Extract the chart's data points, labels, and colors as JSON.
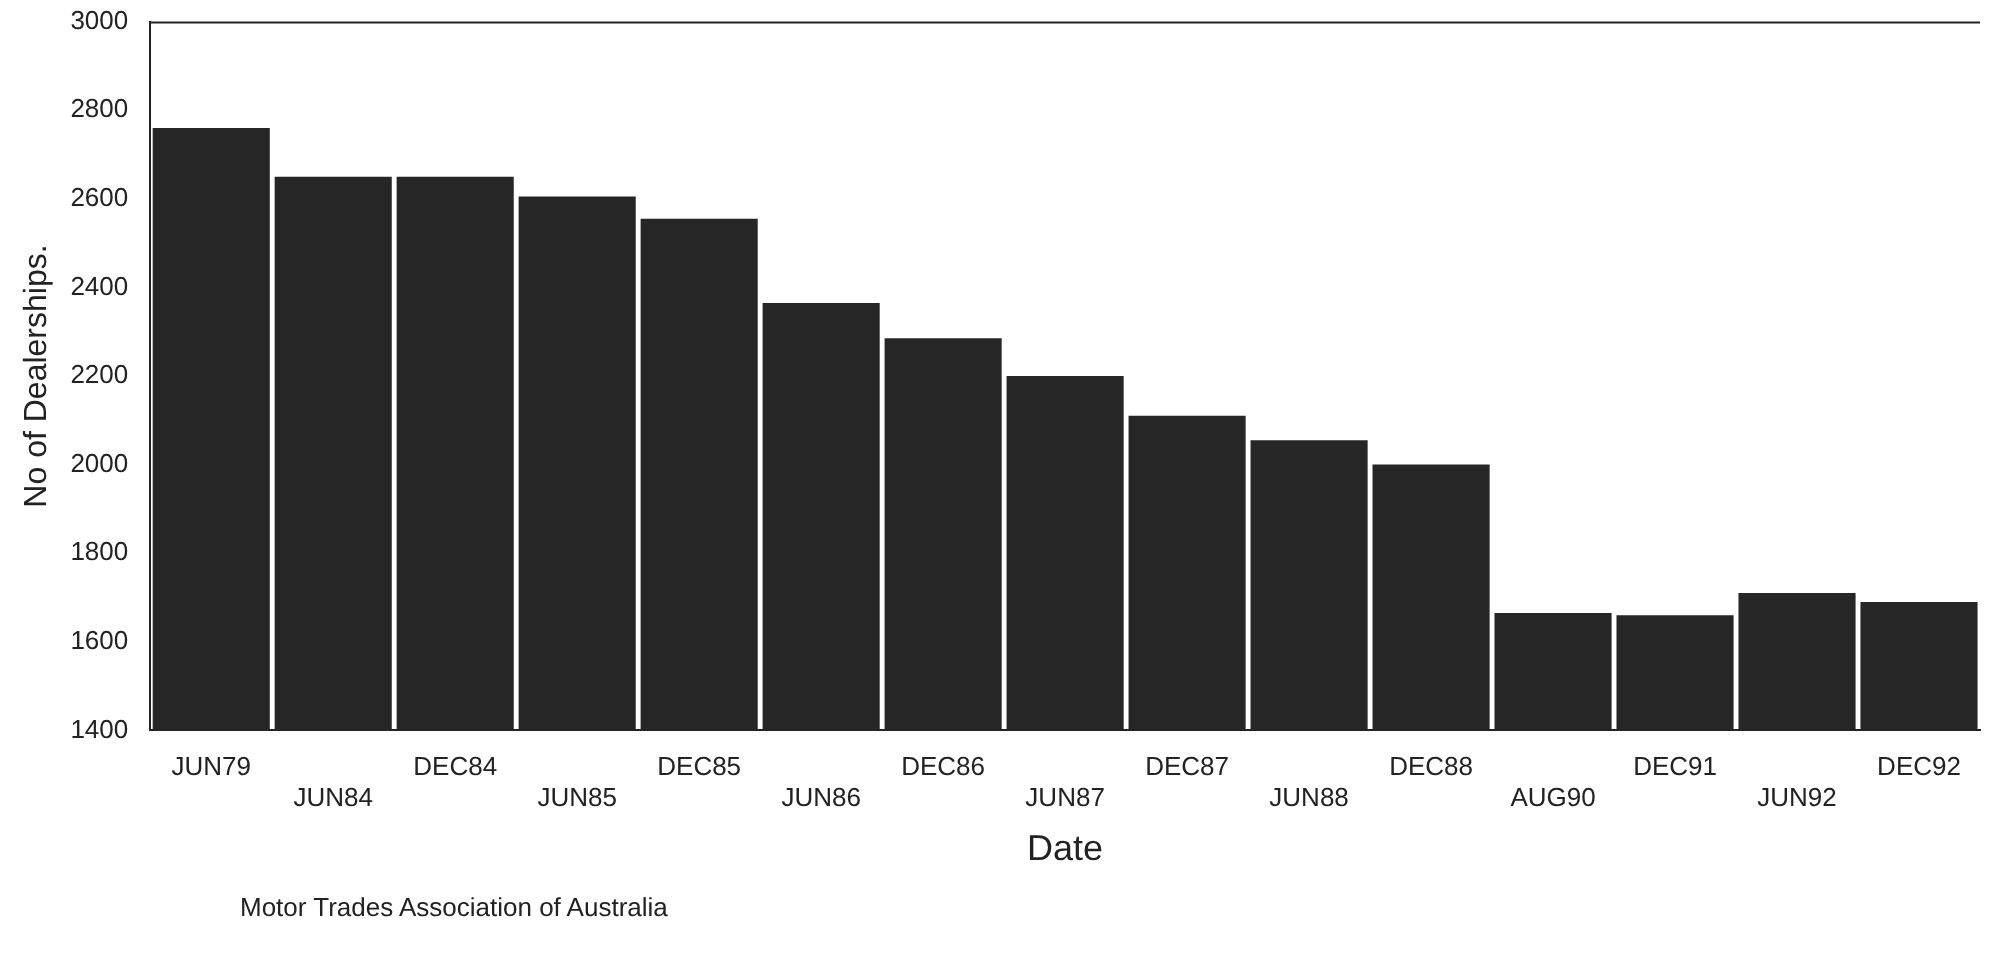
{
  "chart_data": {
    "type": "bar",
    "xlabel": "Date",
    "ylabel": "No of Dealerships.",
    "categories": [
      "JUN79",
      "JUN84",
      "DEC84",
      "JUN85",
      "DEC85",
      "JUN86",
      "DEC86",
      "JUN87",
      "DEC87",
      "JUN88",
      "DEC88",
      "AUG90",
      "DEC91",
      "JUN92",
      "DEC92"
    ],
    "values": [
      2760,
      2650,
      2650,
      2605,
      2555,
      2365,
      2285,
      2200,
      2110,
      2055,
      2000,
      1665,
      1660,
      1710,
      1690
    ],
    "color": "#262626",
    "ylim": [
      1400,
      3000
    ],
    "yticks": [
      1400,
      1600,
      1800,
      2000,
      2200,
      2400,
      2600,
      2800,
      3000
    ],
    "grid": false,
    "legend": false,
    "annotations": [
      "Motor Trades Association of Australia"
    ]
  }
}
